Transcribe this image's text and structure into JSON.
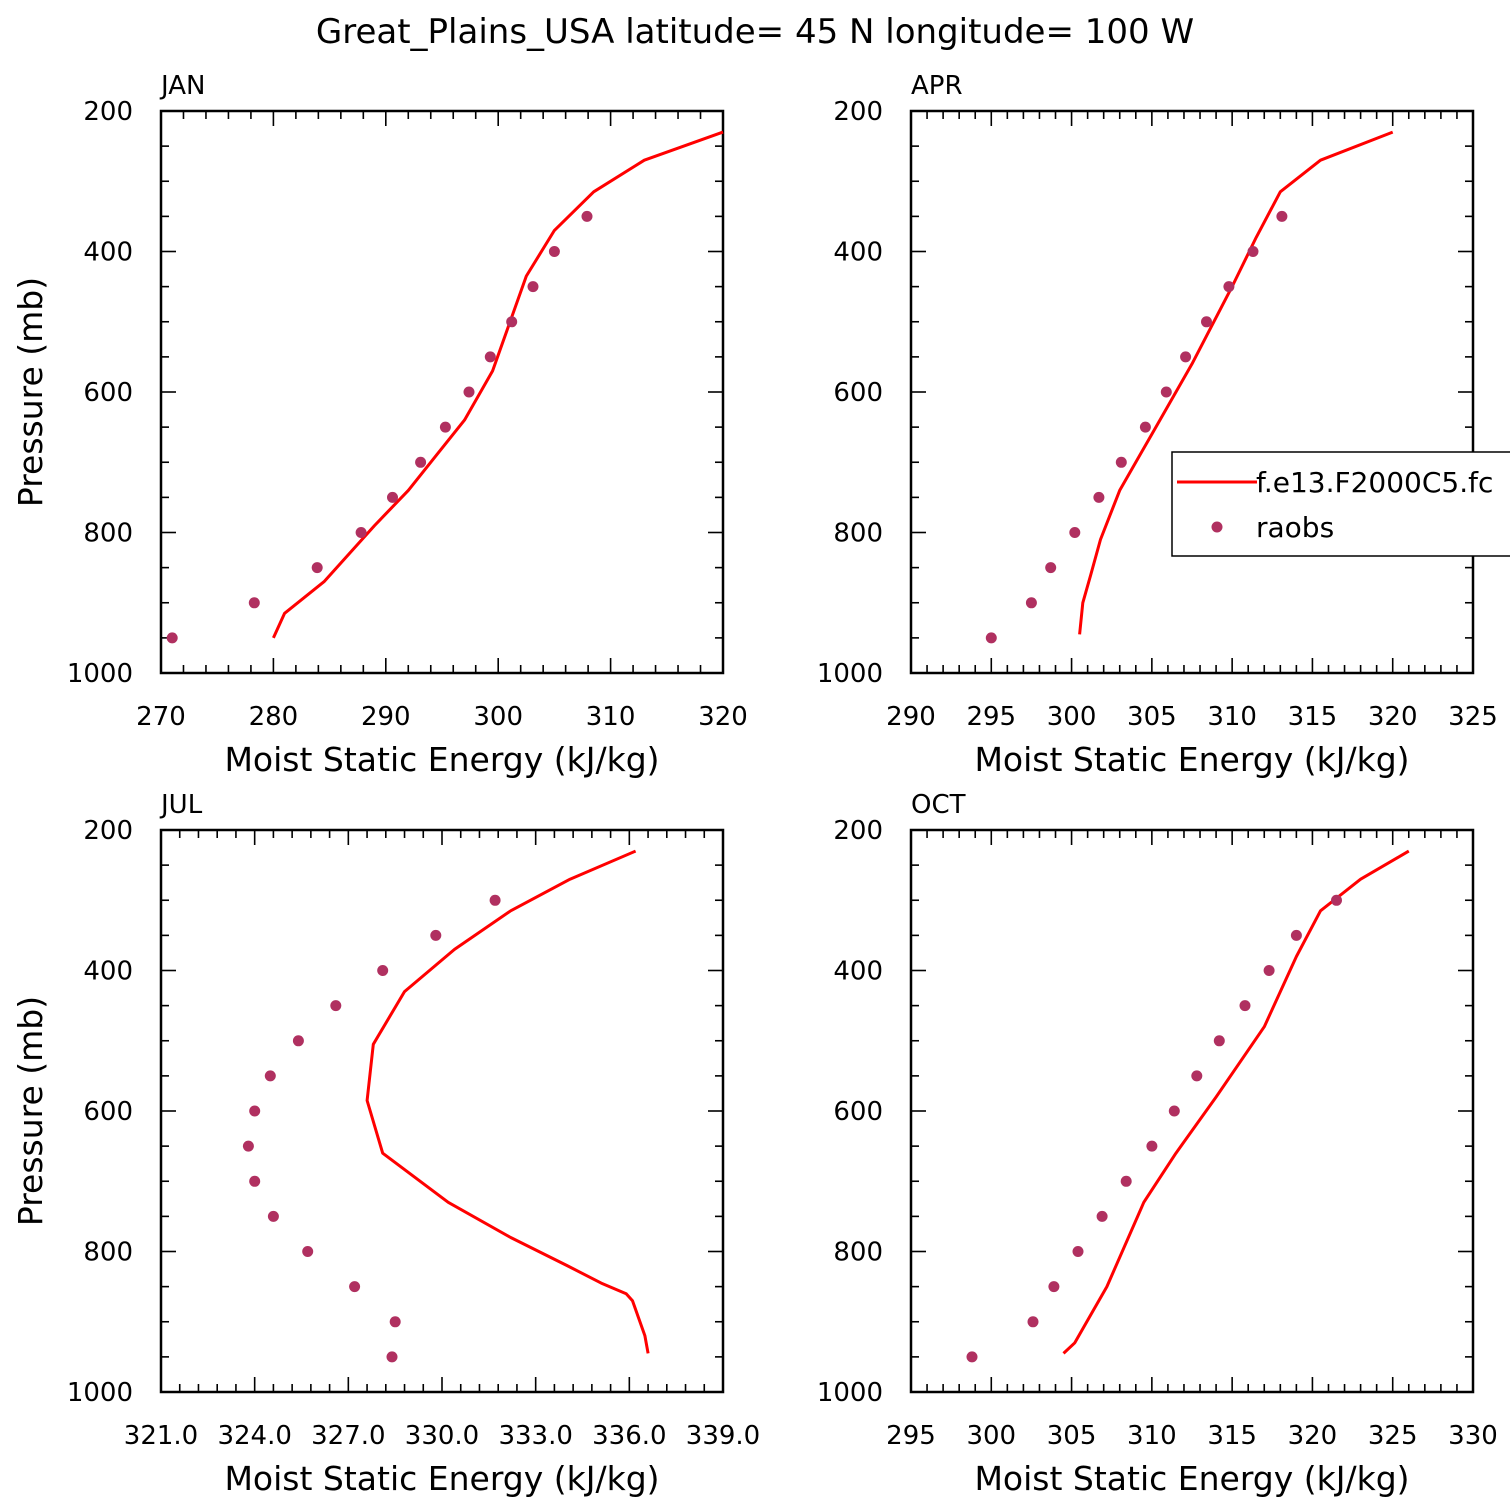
{
  "figure": {
    "title": "Great_Plains_USA  latitude= 45 N longitude= 100 W"
  },
  "colors": {
    "model_line": "#ff0000",
    "raobs_marker": "#b03060",
    "axes": "#000000"
  },
  "legend": {
    "entries": [
      {
        "label": "f.e13.F2000C5.fc",
        "kind": "line"
      },
      {
        "label": "raobs",
        "kind": "marker"
      }
    ]
  },
  "chart_data": [
    {
      "type": "line",
      "title": "JAN",
      "xlabel": "Moist Static Energy (kJ/kg)",
      "ylabel": "Pressure (mb)",
      "xlim": [
        270,
        320
      ],
      "ylim": [
        1000,
        200
      ],
      "x_ticks": [
        "270",
        "280",
        "290",
        "300",
        "310",
        "320"
      ],
      "y_ticks": [
        "200",
        "400",
        "600",
        "800",
        "1000"
      ],
      "series": [
        {
          "name": "f.e13.F2000C5.fc",
          "style": "line",
          "x": [
            280.0,
            281.0,
            284.5,
            289.0,
            292.0,
            294.5,
            297.0,
            299.5,
            302.5,
            305.0,
            308.5,
            313.0,
            320.0
          ],
          "y": [
            950,
            915,
            870,
            790,
            740,
            690,
            640,
            570,
            435,
            370,
            315,
            270,
            230
          ]
        },
        {
          "name": "raobs",
          "style": "markers",
          "x": [
            271.0,
            278.3,
            283.9,
            287.8,
            290.6,
            293.1,
            295.3,
            297.4,
            299.3,
            301.2,
            303.1,
            305.0,
            307.9
          ],
          "y": [
            950,
            900,
            850,
            800,
            750,
            700,
            650,
            600,
            550,
            500,
            450,
            400,
            350
          ]
        }
      ]
    },
    {
      "type": "line",
      "title": "APR",
      "xlabel": "Moist Static Energy (kJ/kg)",
      "ylabel": "",
      "xlim": [
        290,
        325
      ],
      "ylim": [
        1000,
        200
      ],
      "x_ticks": [
        "290",
        "295",
        "300",
        "305",
        "310",
        "315",
        "320",
        "325"
      ],
      "y_ticks": [
        "200",
        "400",
        "600",
        "800",
        "1000"
      ],
      "series": [
        {
          "name": "f.e13.F2000C5.fc",
          "style": "line",
          "x": [
            300.5,
            300.7,
            301.2,
            301.8,
            303.0,
            305.0,
            307.5,
            310.0,
            311.5,
            313.0,
            315.5,
            320.0
          ],
          "y": [
            945,
            900,
            860,
            810,
            740,
            660,
            560,
            450,
            380,
            315,
            270,
            230
          ]
        },
        {
          "name": "raobs",
          "style": "markers",
          "x": [
            295.0,
            297.5,
            298.7,
            300.2,
            301.7,
            303.1,
            304.6,
            305.9,
            307.1,
            308.4,
            309.8,
            311.3,
            313.1
          ],
          "y": [
            950,
            900,
            850,
            800,
            750,
            700,
            650,
            600,
            550,
            500,
            450,
            400,
            350
          ]
        }
      ]
    },
    {
      "type": "line",
      "title": "JUL",
      "xlabel": "Moist Static Energy (kJ/kg)",
      "ylabel": "Pressure (mb)",
      "xlim": [
        321.0,
        339.0
      ],
      "ylim": [
        1000,
        200
      ],
      "x_ticks": [
        "321.0",
        "324.0",
        "327.0",
        "330.0",
        "333.0",
        "336.0",
        "339.0"
      ],
      "y_ticks": [
        "200",
        "400",
        "600",
        "800",
        "1000"
      ],
      "series": [
        {
          "name": "f.e13.F2000C5.fc",
          "style": "line",
          "x": [
            336.6,
            336.5,
            336.3,
            336.1,
            335.9,
            335.1,
            334.0,
            332.2,
            330.2,
            328.1,
            327.6,
            327.8,
            328.8,
            330.4,
            332.2,
            334.1,
            336.2
          ],
          "y": [
            945,
            920,
            895,
            870,
            860,
            845,
            820,
            780,
            730,
            660,
            585,
            505,
            430,
            370,
            315,
            270,
            230
          ]
        },
        {
          "name": "raobs",
          "style": "markers",
          "x": [
            328.4,
            328.5,
            327.2,
            325.7,
            324.6,
            324.0,
            323.8,
            324.0,
            324.5,
            325.4,
            326.6,
            328.1,
            329.8,
            331.7
          ],
          "y": [
            950,
            900,
            850,
            800,
            750,
            700,
            650,
            600,
            550,
            500,
            450,
            400,
            350,
            300
          ]
        }
      ]
    },
    {
      "type": "line",
      "title": "OCT",
      "xlabel": "Moist Static Energy (kJ/kg)",
      "ylabel": "",
      "xlim": [
        295,
        330
      ],
      "ylim": [
        1000,
        200
      ],
      "x_ticks": [
        "295",
        "300",
        "305",
        "310",
        "315",
        "320",
        "325",
        "330"
      ],
      "y_ticks": [
        "200",
        "400",
        "600",
        "800",
        "1000"
      ],
      "series": [
        {
          "name": "f.e13.F2000C5.fc",
          "style": "line",
          "x": [
            304.5,
            305.2,
            306.2,
            307.2,
            309.5,
            311.5,
            314.0,
            317.0,
            319.0,
            320.5,
            323.0,
            326.0
          ],
          "y": [
            945,
            930,
            890,
            850,
            730,
            660,
            580,
            480,
            380,
            315,
            270,
            230
          ]
        },
        {
          "name": "raobs",
          "style": "markers",
          "x": [
            298.8,
            302.6,
            303.9,
            305.4,
            306.9,
            308.4,
            310.0,
            311.4,
            312.8,
            314.2,
            315.8,
            317.3,
            319.0,
            321.5
          ],
          "y": [
            950,
            900,
            850,
            800,
            750,
            700,
            650,
            600,
            550,
            500,
            450,
            400,
            350,
            300
          ]
        }
      ]
    }
  ]
}
